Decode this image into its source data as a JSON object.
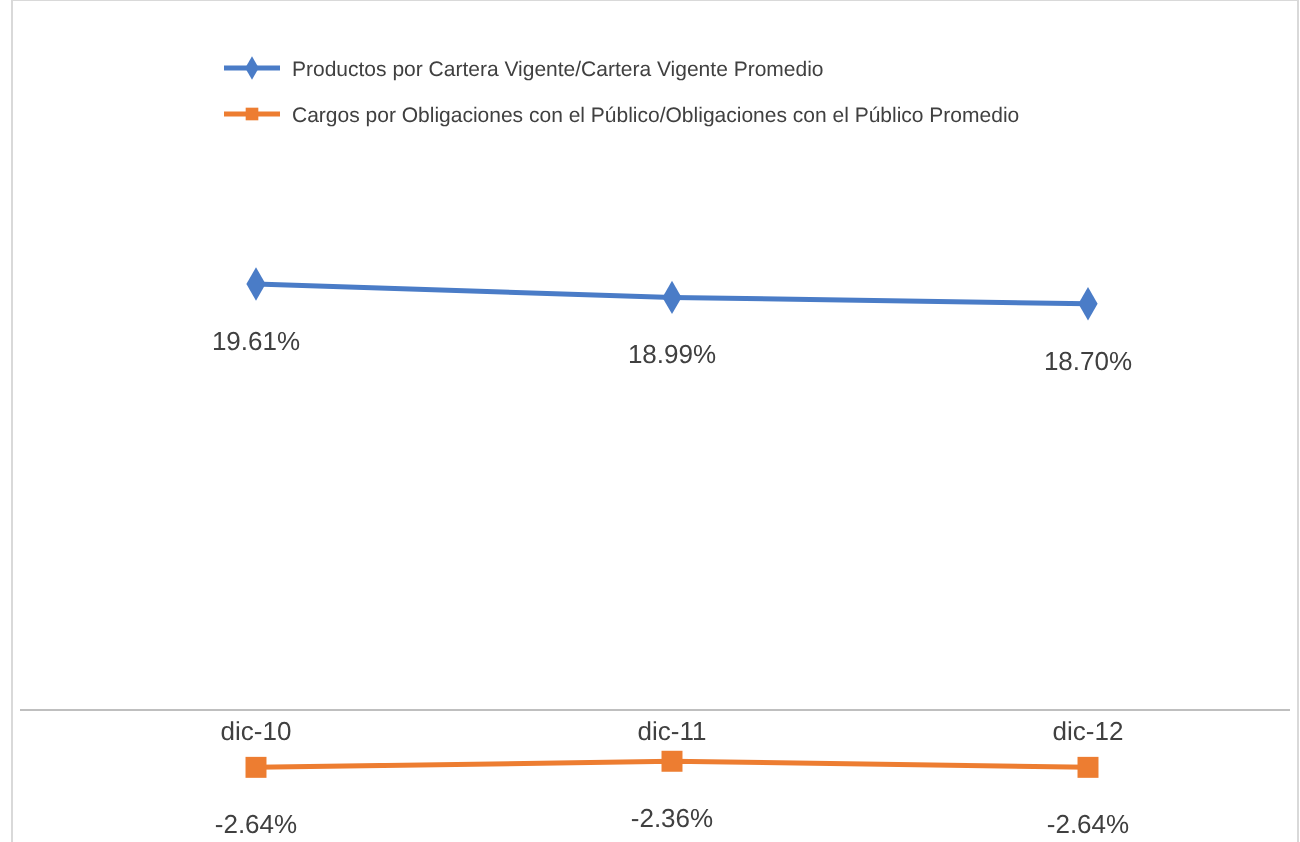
{
  "chart_data": {
    "type": "line",
    "categories": [
      "dic-10",
      "dic-11",
      "dic-12"
    ],
    "legend": "top left",
    "series": [
      {
        "name": "Productos por Cartera Vigente/Cartera Vigente Promedio",
        "color": "#4a7cc7",
        "marker": "diamond",
        "values": [
          19.61,
          18.99,
          18.7
        ],
        "value_labels": [
          "19.61%",
          "18.99%",
          "18.70%"
        ]
      },
      {
        "name": "Cargos por Obligaciones con el Público/Obligaciones con el Público Promedio",
        "color": "#ed7d31",
        "marker": "square",
        "values": [
          -2.64,
          -2.36,
          -2.64
        ],
        "value_labels": [
          "-2.64%",
          "-2.36%",
          "-2.64%"
        ]
      }
    ]
  }
}
